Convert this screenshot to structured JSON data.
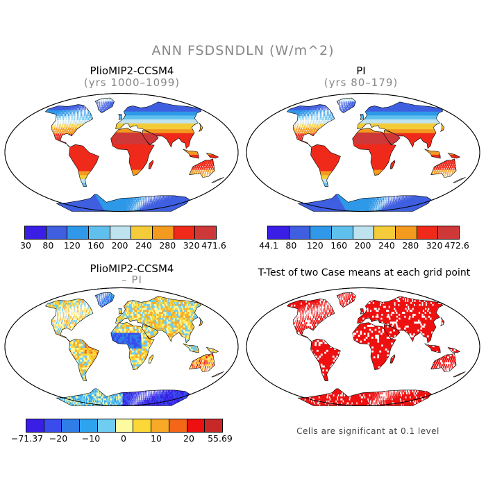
{
  "figure": {
    "title": "ANN FSDSNDLN (W/m^2)"
  },
  "panels": {
    "top_left": {
      "title": "PlioMIP2-CCSM4",
      "subtitle": "(yrs 1000–1099)",
      "colorbar_labels": [
        "30",
        "80",
        "120",
        "160",
        "200",
        "240",
        "280",
        "320",
        "471.6"
      ]
    },
    "top_right": {
      "title": "PI",
      "subtitle": "(yrs 80–179)",
      "colorbar_labels": [
        "44.1",
        "80",
        "120",
        "160",
        "200",
        "240",
        "280",
        "320",
        "472.6"
      ]
    },
    "bottom_left": {
      "title": "PlioMIP2-CCSM4",
      "subtitle": "– PI",
      "colorbar_labels": [
        "−71.37",
        "−20",
        "−10",
        "0",
        "10",
        "20",
        "55.69"
      ]
    },
    "bottom_right": {
      "title": "T-Test of two Case means at each grid point",
      "note": "Cells are significant at 0.1 level"
    }
  },
  "colors": {
    "abs_scale": [
      "#3a1ee6",
      "#3f5fe0",
      "#2f98e8",
      "#5fc0ee",
      "#bfe3ee",
      "#f4cc3a",
      "#f39a1f",
      "#ef2a1a",
      "#cf3838"
    ],
    "diff_scale": [
      "#3a1ee6",
      "#3a4cec",
      "#2f7ee8",
      "#2ea4ee",
      "#6fcdf2",
      "#fdfaa0",
      "#fbd838",
      "#f9a928",
      "#f46618",
      "#ee1010",
      "#c82828"
    ],
    "significance": "#ee1111"
  }
}
